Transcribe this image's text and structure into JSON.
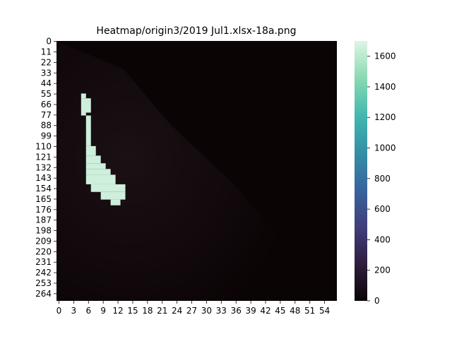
{
  "chart_data": {
    "type": "heatmap",
    "title": "Heatmap/origin3/2019 Jul1.xlsx-18a.png",
    "xlabel": "",
    "ylabel": "",
    "x_ticks": [
      "0",
      "3",
      "6",
      "9",
      "12",
      "15",
      "18",
      "21",
      "24",
      "27",
      "30",
      "33",
      "36",
      "39",
      "42",
      "45",
      "48",
      "51",
      "54"
    ],
    "y_ticks": [
      "0",
      "11",
      "22",
      "33",
      "44",
      "55",
      "66",
      "77",
      "88",
      "99",
      "110",
      "121",
      "132",
      "143",
      "154",
      "165",
      "176",
      "187",
      "198",
      "209",
      "220",
      "231",
      "242",
      "253",
      "264"
    ],
    "n_cols": 57,
    "n_rows": 272,
    "value_range": [
      0,
      1700
    ],
    "colorbar_ticks": [
      0,
      200,
      400,
      600,
      800,
      1000,
      1200,
      1400,
      1600
    ],
    "colormap": "mako",
    "colormap_stops": [
      "#0b0405",
      "#2e1e3b",
      "#413d7b",
      "#37659e",
      "#348fa7",
      "#40b7ad",
      "#8bdab2",
      "#def5e5"
    ],
    "background_value": 0,
    "low_region_value": 60,
    "high_region": {
      "value": 1650,
      "row_extents": [
        {
          "rows": [
            55,
            60
          ],
          "cols": [
            5,
            6
          ]
        },
        {
          "rows": [
            60,
            75
          ],
          "cols": [
            5,
            7
          ]
        },
        {
          "rows": [
            75,
            78
          ],
          "cols": [
            5,
            6
          ]
        },
        {
          "rows": [
            78,
            110
          ],
          "cols": [
            6,
            7
          ]
        },
        {
          "rows": [
            110,
            120
          ],
          "cols": [
            6,
            8
          ]
        },
        {
          "rows": [
            120,
            128
          ],
          "cols": [
            6,
            9
          ]
        },
        {
          "rows": [
            128,
            134
          ],
          "cols": [
            6,
            10
          ]
        },
        {
          "rows": [
            134,
            140
          ],
          "cols": [
            6,
            11
          ]
        },
        {
          "rows": [
            140,
            150
          ],
          "cols": [
            6,
            12
          ]
        },
        {
          "rows": [
            150,
            158
          ],
          "cols": [
            7,
            14
          ]
        },
        {
          "rows": [
            158,
            166
          ],
          "cols": [
            9,
            14
          ]
        },
        {
          "rows": [
            166,
            172
          ],
          "cols": [
            11,
            13
          ]
        }
      ]
    }
  }
}
